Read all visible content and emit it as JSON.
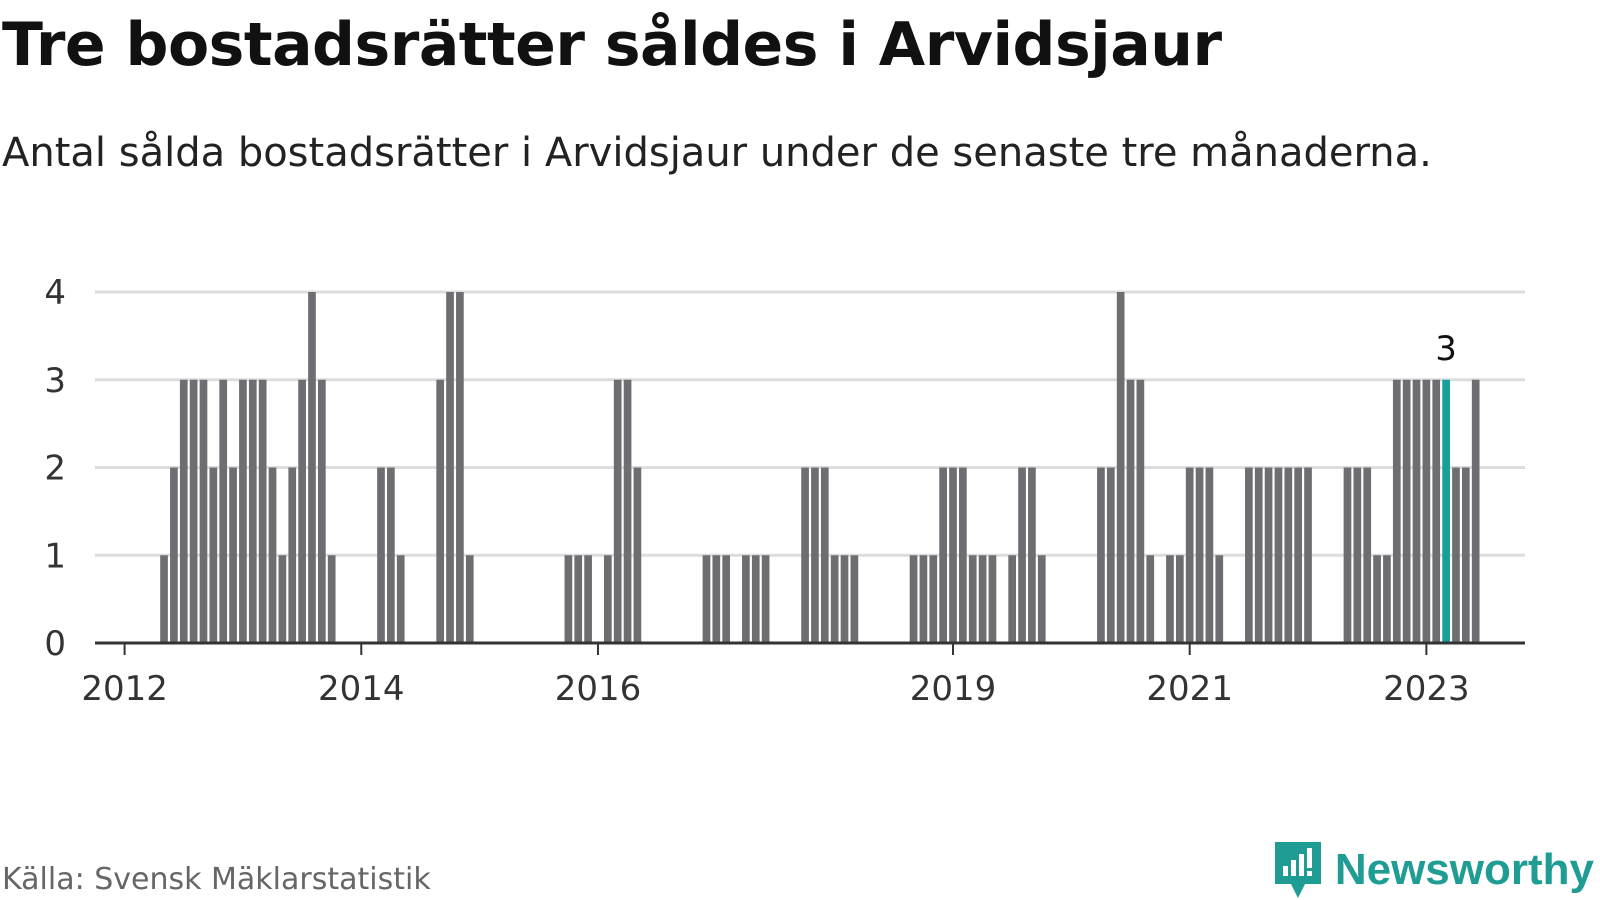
{
  "header": {
    "title": "Tre bostadsrätter såldes i Arvidsjaur",
    "subtitle": "Antal sålda bostadsrätter i Arvidsjaur under de senaste tre månaderna."
  },
  "footer": {
    "source": "Källa: Svensk Mäklarstatistik",
    "brand": "Newsworthy",
    "brand_icon": "newsworthy-logo-icon"
  },
  "colors": {
    "bar": "#6e6d72",
    "highlight": "#16a097",
    "grid": "#dddddd",
    "axis": "#333333",
    "brand": "#1f9c94"
  },
  "chart_data": {
    "type": "bar",
    "title": "Tre bostadsrätter såldes i Arvidsjaur",
    "subtitle": "Antal sålda bostadsrätter i Arvidsjaur under de senaste tre månaderna.",
    "xlabel": "",
    "ylabel": "",
    "x_range": [
      "2011-10",
      "2023-11"
    ],
    "ylim": [
      0,
      4
    ],
    "yticks": [
      0,
      1,
      2,
      3,
      4
    ],
    "xticks": [
      {
        "label": "2012",
        "x": "2012-01"
      },
      {
        "label": "2014",
        "x": "2014-01"
      },
      {
        "label": "2016",
        "x": "2016-01"
      },
      {
        "label": "2019",
        "x": "2019-01"
      },
      {
        "label": "2021",
        "x": "2021-01"
      },
      {
        "label": "2023",
        "x": "2023-01"
      }
    ],
    "grid": true,
    "highlight": {
      "x": "2023-03",
      "value": 3,
      "label": "3"
    },
    "series": [
      {
        "values": [
          [
            "2012-05",
            1
          ],
          [
            "2012-06",
            2
          ],
          [
            "2012-07",
            3
          ],
          [
            "2012-08",
            3
          ],
          [
            "2012-09",
            3
          ],
          [
            "2012-10",
            2
          ],
          [
            "2012-11",
            3
          ],
          [
            "2012-12",
            2
          ],
          [
            "2013-01",
            3
          ],
          [
            "2013-02",
            3
          ],
          [
            "2013-03",
            3
          ],
          [
            "2013-04",
            2
          ],
          [
            "2013-05",
            1
          ],
          [
            "2013-06",
            2
          ],
          [
            "2013-07",
            3
          ],
          [
            "2013-08",
            4
          ],
          [
            "2013-09",
            3
          ],
          [
            "2013-10",
            1
          ],
          [
            "2014-03",
            2
          ],
          [
            "2014-04",
            2
          ],
          [
            "2014-05",
            1
          ],
          [
            "2014-09",
            3
          ],
          [
            "2014-10",
            4
          ],
          [
            "2014-11",
            4
          ],
          [
            "2014-12",
            1
          ],
          [
            "2015-10",
            1
          ],
          [
            "2015-11",
            1
          ],
          [
            "2015-12",
            1
          ],
          [
            "2016-02",
            1
          ],
          [
            "2016-03",
            3
          ],
          [
            "2016-04",
            3
          ],
          [
            "2016-05",
            2
          ],
          [
            "2016-12",
            1
          ],
          [
            "2017-01",
            1
          ],
          [
            "2017-02",
            1
          ],
          [
            "2017-04",
            1
          ],
          [
            "2017-05",
            1
          ],
          [
            "2017-06",
            1
          ],
          [
            "2017-10",
            2
          ],
          [
            "2017-11",
            2
          ],
          [
            "2017-12",
            2
          ],
          [
            "2018-01",
            1
          ],
          [
            "2018-02",
            1
          ],
          [
            "2018-03",
            1
          ],
          [
            "2018-09",
            1
          ],
          [
            "2018-10",
            1
          ],
          [
            "2018-11",
            1
          ],
          [
            "2018-12",
            2
          ],
          [
            "2019-01",
            2
          ],
          [
            "2019-02",
            2
          ],
          [
            "2019-03",
            1
          ],
          [
            "2019-04",
            1
          ],
          [
            "2019-05",
            1
          ],
          [
            "2019-07",
            1
          ],
          [
            "2019-08",
            2
          ],
          [
            "2019-09",
            2
          ],
          [
            "2019-10",
            1
          ],
          [
            "2020-04",
            2
          ],
          [
            "2020-05",
            2
          ],
          [
            "2020-06",
            4
          ],
          [
            "2020-07",
            3
          ],
          [
            "2020-08",
            3
          ],
          [
            "2020-09",
            1
          ],
          [
            "2020-11",
            1
          ],
          [
            "2020-12",
            1
          ],
          [
            "2021-01",
            2
          ],
          [
            "2021-02",
            2
          ],
          [
            "2021-03",
            2
          ],
          [
            "2021-04",
            1
          ],
          [
            "2021-07",
            2
          ],
          [
            "2021-08",
            2
          ],
          [
            "2021-09",
            2
          ],
          [
            "2021-10",
            2
          ],
          [
            "2021-11",
            2
          ],
          [
            "2021-12",
            2
          ],
          [
            "2022-01",
            2
          ],
          [
            "2022-05",
            2
          ],
          [
            "2022-06",
            2
          ],
          [
            "2022-07",
            2
          ],
          [
            "2022-08",
            1
          ],
          [
            "2022-09",
            1
          ],
          [
            "2022-10",
            3
          ],
          [
            "2022-11",
            3
          ],
          [
            "2022-12",
            3
          ],
          [
            "2023-01",
            3
          ],
          [
            "2023-02",
            3
          ],
          [
            "2023-03",
            3
          ],
          [
            "2023-04",
            2
          ],
          [
            "2023-05",
            2
          ],
          [
            "2023-06",
            3
          ]
        ]
      }
    ]
  }
}
